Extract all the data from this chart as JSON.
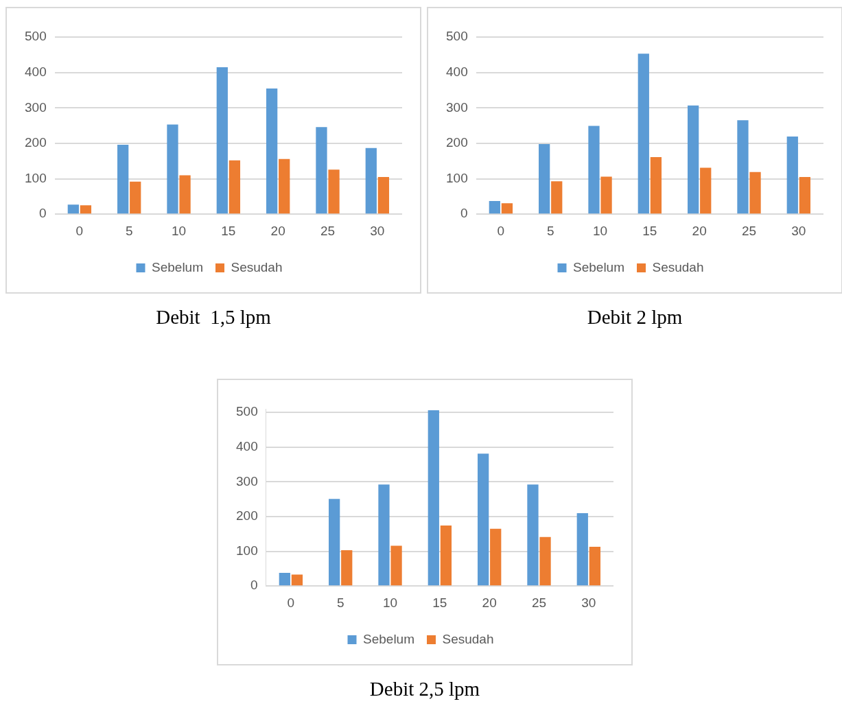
{
  "chart_data": [
    {
      "type": "bar",
      "title": "Debit  1,5 lpm",
      "categories": [
        "0",
        "5",
        "10",
        "15",
        "20",
        "25",
        "30"
      ],
      "series": [
        {
          "name": "Sebelum",
          "color": "#5b9bd5",
          "values": [
            27,
            196,
            253,
            415,
            355,
            246,
            187
          ]
        },
        {
          "name": "Sesudah",
          "color": "#ed7d31",
          "values": [
            25,
            92,
            110,
            152,
            156,
            126,
            105
          ]
        }
      ],
      "ylim": [
        0,
        500
      ],
      "yticks": [
        0,
        100,
        200,
        300,
        400,
        500
      ],
      "grid": "y",
      "legend": "bottom"
    },
    {
      "type": "bar",
      "title": "Debit 2 lpm",
      "categories": [
        "0",
        "5",
        "10",
        "15",
        "20",
        "25",
        "30"
      ],
      "series": [
        {
          "name": "Sebelum",
          "color": "#5b9bd5",
          "values": [
            37,
            198,
            249,
            453,
            307,
            265,
            219
          ]
        },
        {
          "name": "Sesudah",
          "color": "#ed7d31",
          "values": [
            31,
            93,
            106,
            161,
            131,
            119,
            105
          ]
        }
      ],
      "ylim": [
        0,
        500
      ],
      "yticks": [
        0,
        100,
        200,
        300,
        400,
        500
      ],
      "grid": "y",
      "legend": "bottom"
    },
    {
      "type": "bar",
      "title": "Debit 2,5 lpm",
      "categories": [
        "0",
        "5",
        "10",
        "15",
        "20",
        "25",
        "30"
      ],
      "series": [
        {
          "name": "Sebelum",
          "color": "#5b9bd5",
          "values": [
            38,
            251,
            292,
            506,
            381,
            292,
            210
          ]
        },
        {
          "name": "Sesudah",
          "color": "#ed7d31",
          "values": [
            33,
            103,
            116,
            174,
            165,
            141,
            113
          ]
        }
      ],
      "ylim": [
        0,
        510
      ],
      "yticks": [
        0,
        100,
        200,
        300,
        400,
        500
      ],
      "grid": "y",
      "legend": "bottom"
    }
  ]
}
